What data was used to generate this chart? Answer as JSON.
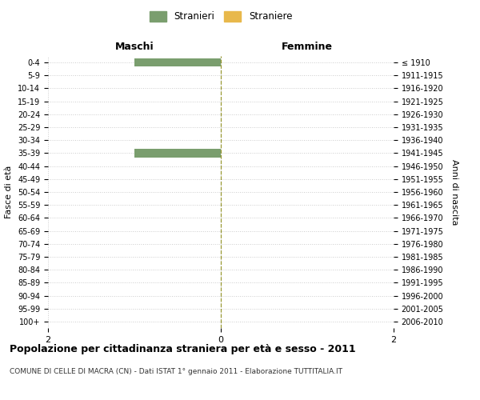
{
  "age_groups": [
    "0-4",
    "5-9",
    "10-14",
    "15-19",
    "20-24",
    "25-29",
    "30-34",
    "35-39",
    "40-44",
    "45-49",
    "50-54",
    "55-59",
    "60-64",
    "65-69",
    "70-74",
    "75-79",
    "80-84",
    "85-89",
    "90-94",
    "95-99",
    "100+"
  ],
  "birth_years": [
    "2006-2010",
    "2001-2005",
    "1996-2000",
    "1991-1995",
    "1986-1990",
    "1981-1985",
    "1976-1980",
    "1971-1975",
    "1966-1970",
    "1961-1965",
    "1956-1960",
    "1951-1955",
    "1946-1950",
    "1941-1945",
    "1936-1940",
    "1931-1935",
    "1926-1930",
    "1921-1925",
    "1916-1920",
    "1911-1915",
    "≤ 1910"
  ],
  "males_stranieri": [
    1,
    0,
    0,
    0,
    0,
    0,
    0,
    1,
    0,
    0,
    0,
    0,
    0,
    0,
    0,
    0,
    0,
    0,
    0,
    0,
    0
  ],
  "females_straniere": [
    0,
    0,
    0,
    0,
    0,
    0,
    0,
    0,
    0,
    0,
    0,
    0,
    0,
    0,
    0,
    0,
    0,
    0,
    0,
    0,
    0
  ],
  "color_stranieri": "#7a9e6e",
  "color_straniere": "#e8b84b",
  "title": "Popolazione per cittadinanza straniera per età e sesso - 2011",
  "subtitle": "COMUNE DI CELLE DI MACRA (CN) - Dati ISTAT 1° gennaio 2011 - Elaborazione TUTTITALIA.IT",
  "ylabel_left": "Fasce di età",
  "ylabel_right": "Anni di nascita",
  "xlabel_left": "Maschi",
  "xlabel_right": "Femmine",
  "xlim": 2,
  "background_color": "#ffffff",
  "grid_color": "#cccccc",
  "legend_stranieri": "Stranieri",
  "legend_straniere": "Straniere"
}
